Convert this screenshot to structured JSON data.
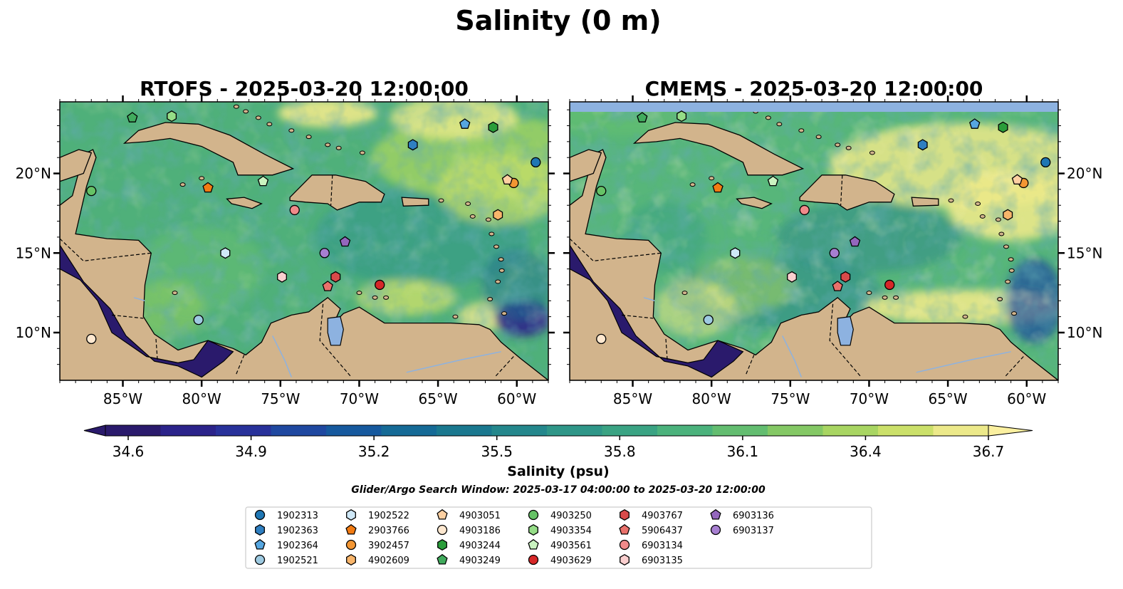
{
  "figure": {
    "title": "Salinity (0 m)",
    "search_window": "Glider/Argo Search Window: 2025-03-17 04:00:00 to 2025-03-20 12:00:00"
  },
  "chart_data": {
    "type": "heatmap",
    "panels": [
      {
        "title": "RTOFS - 2025-03-20 12:00:00"
      },
      {
        "title": "CMEMS - 2025-03-20 12:00:00"
      }
    ],
    "xlim": [
      -89,
      -58
    ],
    "ylim": [
      7,
      24.5
    ],
    "x_ticks": [
      -85,
      -80,
      -75,
      -70,
      -65,
      -60
    ],
    "x_tick_labels": [
      "85°W",
      "80°W",
      "75°W",
      "70°W",
      "65°W",
      "60°W"
    ],
    "y_ticks": [
      10,
      15,
      20
    ],
    "y_tick_labels": [
      "10°N",
      "15°N",
      "20°N"
    ],
    "colorbar": {
      "label": "Salinity (psu)",
      "min": 34.6,
      "max": 36.7,
      "extend": "both",
      "ticks": [
        34.6,
        34.9,
        35.2,
        35.5,
        35.8,
        36.1,
        36.4,
        36.7
      ],
      "tick_labels": [
        "34.6",
        "34.9",
        "35.2",
        "35.5",
        "35.8",
        "36.1",
        "36.4",
        "36.7"
      ],
      "colors": [
        "#2a1a6c",
        "#2b238a",
        "#28319a",
        "#1f48a0",
        "#16599e",
        "#156a96",
        "#1a788f",
        "#24878c",
        "#2f9688",
        "#3aa383",
        "#4bb27c",
        "#63bd70",
        "#84c865",
        "#a8d562",
        "#cbe06a",
        "#ece98a"
      ]
    },
    "land_color": "#d2b48c",
    "lake_color": "#8db2e0",
    "floats": [
      {
        "id": "1902313",
        "marker": "circle",
        "color": "#1f77b4",
        "lon": -58.8,
        "lat": 20.7
      },
      {
        "id": "1902363",
        "marker": "hexagon",
        "color": "#2f7fc1",
        "lon": -66.6,
        "lat": 21.8
      },
      {
        "id": "1902364",
        "marker": "pentagon",
        "color": "#56a6e0",
        "lon": -63.3,
        "lat": 23.1
      },
      {
        "id": "1902521",
        "marker": "circle",
        "color": "#9ecae1",
        "lon": -80.2,
        "lat": 10.8
      },
      {
        "id": "1902522",
        "marker": "hexagon",
        "color": "#cfe8f7",
        "lon": -78.5,
        "lat": 15.0
      },
      {
        "id": "2903766",
        "marker": "pentagon",
        "color": "#f27b12",
        "lon": -79.6,
        "lat": 19.1
      },
      {
        "id": "3902457",
        "marker": "circle",
        "color": "#f39633",
        "lon": -60.2,
        "lat": 19.4
      },
      {
        "id": "4902609",
        "marker": "hexagon",
        "color": "#f8b56b",
        "lon": -61.2,
        "lat": 17.4
      },
      {
        "id": "4903051",
        "marker": "pentagon",
        "color": "#fdd0a2",
        "lon": -60.6,
        "lat": 19.6
      },
      {
        "id": "4903186",
        "marker": "circle",
        "color": "#fee8d0",
        "lon": -87.0,
        "lat": 9.6
      },
      {
        "id": "4903244",
        "marker": "hexagon",
        "color": "#2a9d3a",
        "lon": -61.5,
        "lat": 22.9
      },
      {
        "id": "4903249",
        "marker": "pentagon",
        "color": "#41ab5d",
        "lon": -84.4,
        "lat": 23.5
      },
      {
        "id": "4903250",
        "marker": "circle",
        "color": "#66c266",
        "lon": -87.0,
        "lat": 18.9
      },
      {
        "id": "4903354",
        "marker": "hexagon",
        "color": "#95dd87",
        "lon": -81.9,
        "lat": 23.6
      },
      {
        "id": "4903561",
        "marker": "pentagon",
        "color": "#caf3c0",
        "lon": -76.1,
        "lat": 19.5
      },
      {
        "id": "4903629",
        "marker": "circle",
        "color": "#d62728",
        "lon": -68.7,
        "lat": 13.0
      },
      {
        "id": "4903767",
        "marker": "hexagon",
        "color": "#d94a4a",
        "lon": -71.5,
        "lat": 13.5
      },
      {
        "id": "5906437",
        "marker": "pentagon",
        "color": "#e9716b",
        "lon": -72.0,
        "lat": 12.9
      },
      {
        "id": "6903134",
        "marker": "circle",
        "color": "#f08a8a",
        "lon": -74.1,
        "lat": 17.7
      },
      {
        "id": "6903135",
        "marker": "hexagon",
        "color": "#fbcfcf",
        "lon": -74.9,
        "lat": 13.5
      },
      {
        "id": "6903136",
        "marker": "pentagon",
        "color": "#9467bd",
        "lon": -70.9,
        "lat": 15.7
      },
      {
        "id": "6903137",
        "marker": "circle",
        "color": "#a77fd1",
        "lon": -72.2,
        "lat": 15.0
      }
    ]
  }
}
